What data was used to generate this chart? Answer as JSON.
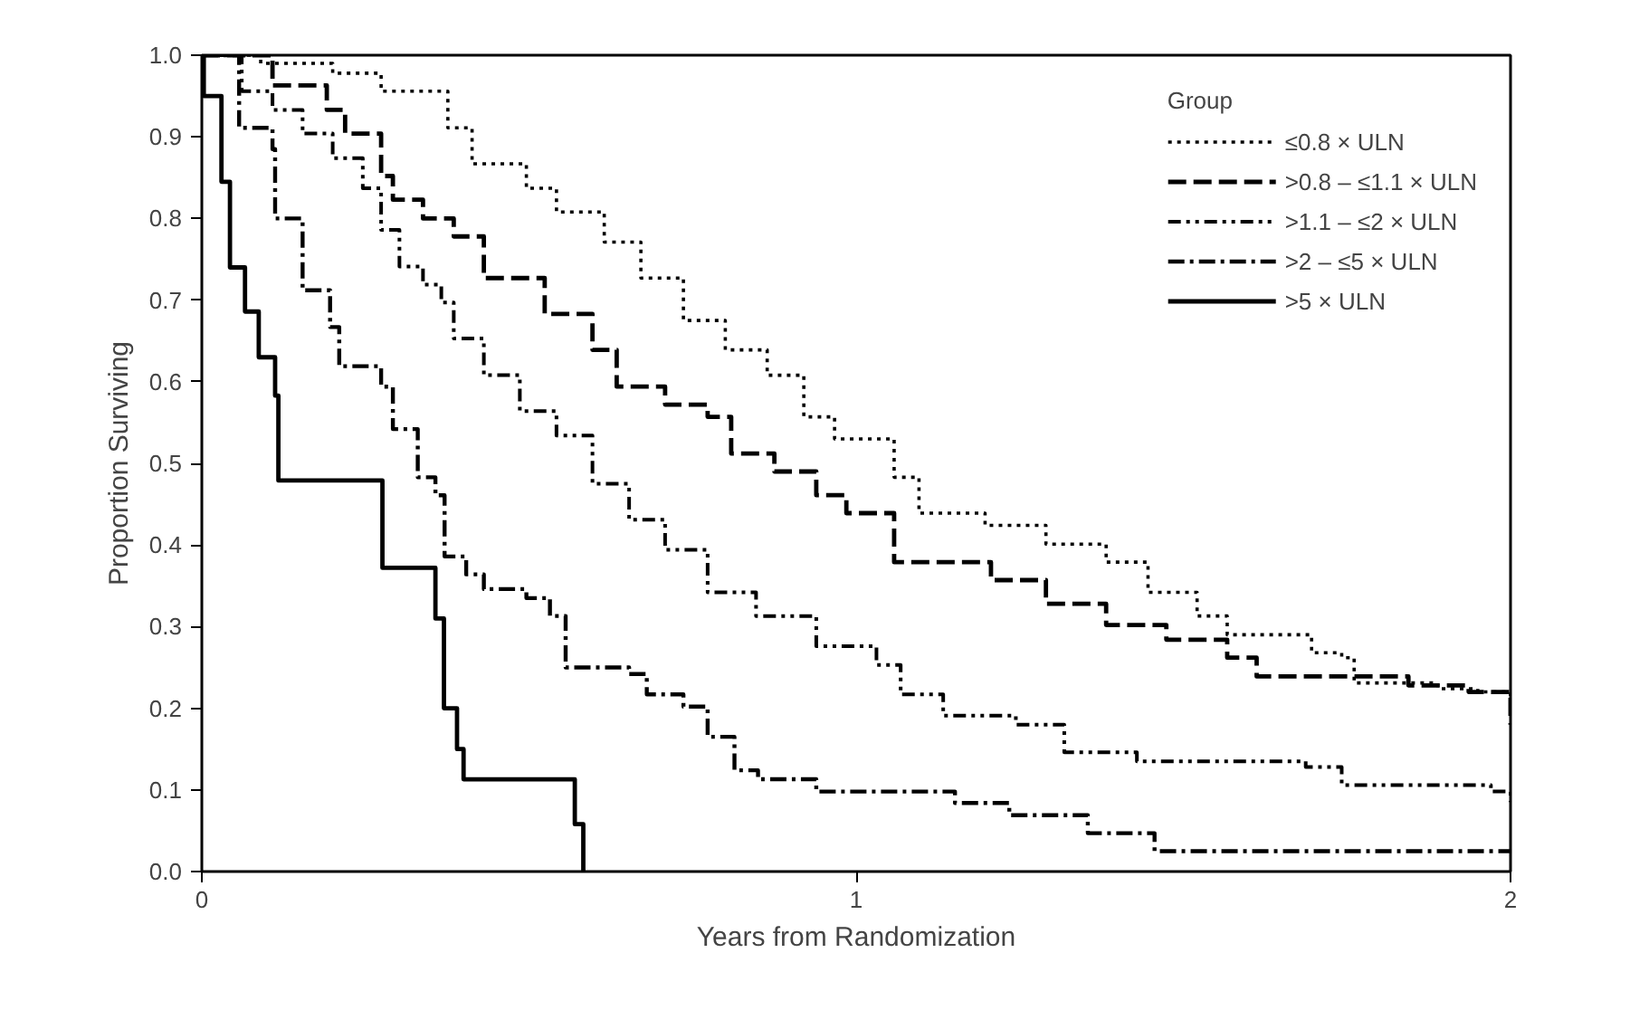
{
  "chart_data": {
    "type": "step",
    "xlabel": "Years from Randomization",
    "ylabel": "Proportion Surviving",
    "legend_title": "Group",
    "legend": "top right",
    "grid": false,
    "xlim": [
      0,
      2
    ],
    "xticks": [
      0,
      1,
      2
    ],
    "ylim": [
      0,
      1
    ],
    "yticks": [
      {
        "value": 0,
        "label": "0.0"
      },
      0.1,
      0.2,
      0.3,
      0.4,
      0.5,
      0.6,
      0.7,
      0.8,
      0.9,
      {
        "value": 1,
        "label": "1.0"
      }
    ],
    "series": [
      {
        "name": "≤0.8 × ULN",
        "color": "#000000",
        "line_style": "dotted",
        "x": [
          0,
          0.09,
          0.2,
          0.274,
          0.376,
          0.413,
          0.496,
          0.542,
          0.615,
          0.671,
          0.736,
          0.8,
          0.864,
          0.92,
          0.967,
          1.058,
          1.096,
          1.197,
          1.29,
          1.382,
          1.446,
          1.521,
          1.567,
          1.668,
          1.696,
          1.742,
          1.761,
          1.889,
          1.95,
          2
        ],
        "values": [
          1,
          0.99,
          0.978,
          0.956,
          0.911,
          0.867,
          0.837,
          0.808,
          0.771,
          0.727,
          0.675,
          0.639,
          0.608,
          0.557,
          0.53,
          0.483,
          0.439,
          0.424,
          0.401,
          0.379,
          0.342,
          0.313,
          0.29,
          0.29,
          0.268,
          0.262,
          0.231,
          0.224,
          0.22,
          0.21
        ]
      },
      {
        "name": ">0.8 – ≤1.1 × ULN",
        "color": "#000000",
        "line_style": "dashed",
        "x": [
          0,
          0.108,
          0.191,
          0.219,
          0.274,
          0.292,
          0.338,
          0.385,
          0.431,
          0.524,
          0.597,
          0.634,
          0.708,
          0.773,
          0.809,
          0.875,
          0.939,
          0.985,
          1.058,
          1.151,
          1.206,
          1.29,
          1.382,
          1.474,
          1.567,
          1.612,
          1.75,
          1.844,
          1.936,
          2
        ],
        "values": [
          1,
          0.963,
          0.933,
          0.904,
          0.852,
          0.823,
          0.8,
          0.778,
          0.727,
          0.683,
          0.639,
          0.594,
          0.572,
          0.557,
          0.512,
          0.49,
          0.461,
          0.439,
          0.379,
          0.379,
          0.357,
          0.328,
          0.302,
          0.284,
          0.262,
          0.239,
          0.239,
          0.228,
          0.22,
          0.18
        ]
      },
      {
        "name": ">1.1 – ≤2 × ULN",
        "color": "#000000",
        "line_style": "dashdotdot",
        "x": [
          0,
          0.061,
          0.108,
          0.154,
          0.2,
          0.246,
          0.274,
          0.302,
          0.338,
          0.366,
          0.385,
          0.431,
          0.486,
          0.542,
          0.597,
          0.653,
          0.708,
          0.773,
          0.847,
          0.939,
          1.031,
          1.068,
          1.133,
          1.244,
          1.318,
          1.429,
          1.687,
          1.742,
          1.97,
          2
        ],
        "values": [
          1,
          0.956,
          0.933,
          0.904,
          0.874,
          0.837,
          0.786,
          0.741,
          0.719,
          0.697,
          0.653,
          0.608,
          0.564,
          0.534,
          0.475,
          0.431,
          0.394,
          0.342,
          0.313,
          0.276,
          0.253,
          0.217,
          0.191,
          0.18,
          0.146,
          0.135,
          0.128,
          0.106,
          0.098,
          0.085
        ]
      },
      {
        "name": ">2 – ≤5 × ULN",
        "color": "#000000",
        "line_style": "dashdot",
        "x": [
          0,
          0.057,
          0.108,
          0.112,
          0.154,
          0.196,
          0.21,
          0.274,
          0.292,
          0.33,
          0.357,
          0.371,
          0.404,
          0.431,
          0.496,
          0.532,
          0.556,
          0.653,
          0.68,
          0.736,
          0.773,
          0.814,
          0.85,
          0.939,
          1.151,
          1.234,
          1.354,
          1.456,
          2
        ],
        "values": [
          1,
          0.911,
          0.885,
          0.8,
          0.712,
          0.667,
          0.619,
          0.594,
          0.542,
          0.483,
          0.461,
          0.386,
          0.364,
          0.346,
          0.335,
          0.313,
          0.25,
          0.242,
          0.217,
          0.202,
          0.165,
          0.124,
          0.113,
          0.098,
          0.084,
          0.069,
          0.047,
          0.025,
          0.025
        ]
      },
      {
        "name": ">5 × ULN",
        "color": "#000000",
        "line_style": "solid",
        "x": [
          0,
          0.003,
          0.03,
          0.043,
          0.066,
          0.087,
          0.112,
          0.117,
          0.276,
          0.357,
          0.37,
          0.39,
          0.4,
          0.57,
          0.583
        ],
        "values": [
          1,
          0.95,
          0.845,
          0.74,
          0.686,
          0.63,
          0.583,
          0.479,
          0.372,
          0.31,
          0.2,
          0.15,
          0.113,
          0.058,
          0
        ]
      }
    ]
  }
}
